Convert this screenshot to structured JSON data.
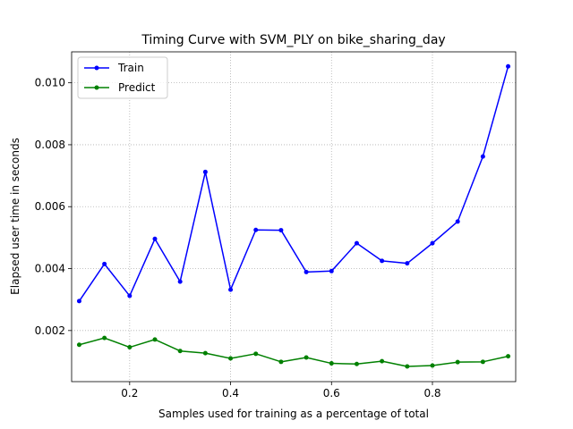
{
  "chart_data": {
    "type": "line",
    "title": "Timing Curve with SVM_PLY on bike_sharing_day",
    "xlabel": "Samples used for training as a percentage of total",
    "ylabel": "Elapsed user time in seconds",
    "xlim": [
      0.085,
      0.965
    ],
    "ylim": [
      0.00035,
      0.011
    ],
    "x_ticks": [
      0.2,
      0.4,
      0.6,
      0.8
    ],
    "x_tick_labels": [
      "0.2",
      "0.4",
      "0.6",
      "0.8"
    ],
    "y_ticks": [
      0.002,
      0.004,
      0.006,
      0.008,
      0.01
    ],
    "y_tick_labels": [
      "0.002",
      "0.004",
      "0.006",
      "0.008",
      "0.010"
    ],
    "grid": true,
    "legend_position": "top-left",
    "x": [
      0.1,
      0.15,
      0.2,
      0.25,
      0.3,
      0.35,
      0.4,
      0.45,
      0.5,
      0.55,
      0.6,
      0.65,
      0.7,
      0.75,
      0.8,
      0.85,
      0.9,
      0.95
    ],
    "series": [
      {
        "name": "Train",
        "color": "#0000ff",
        "values": [
          0.00295,
          0.00415,
          0.00312,
          0.00496,
          0.00358,
          0.00712,
          0.00332,
          0.00525,
          0.00524,
          0.00389,
          0.00392,
          0.00482,
          0.00425,
          0.00417,
          0.00482,
          0.00552,
          0.00762,
          0.01053
        ]
      },
      {
        "name": "Predict",
        "color": "#008000",
        "values": [
          0.00154,
          0.00176,
          0.00146,
          0.00171,
          0.00134,
          0.00127,
          0.0011,
          0.00125,
          0.00099,
          0.00113,
          0.00094,
          0.00092,
          0.00101,
          0.00084,
          0.00087,
          0.00098,
          0.00099,
          0.00117
        ]
      }
    ]
  }
}
